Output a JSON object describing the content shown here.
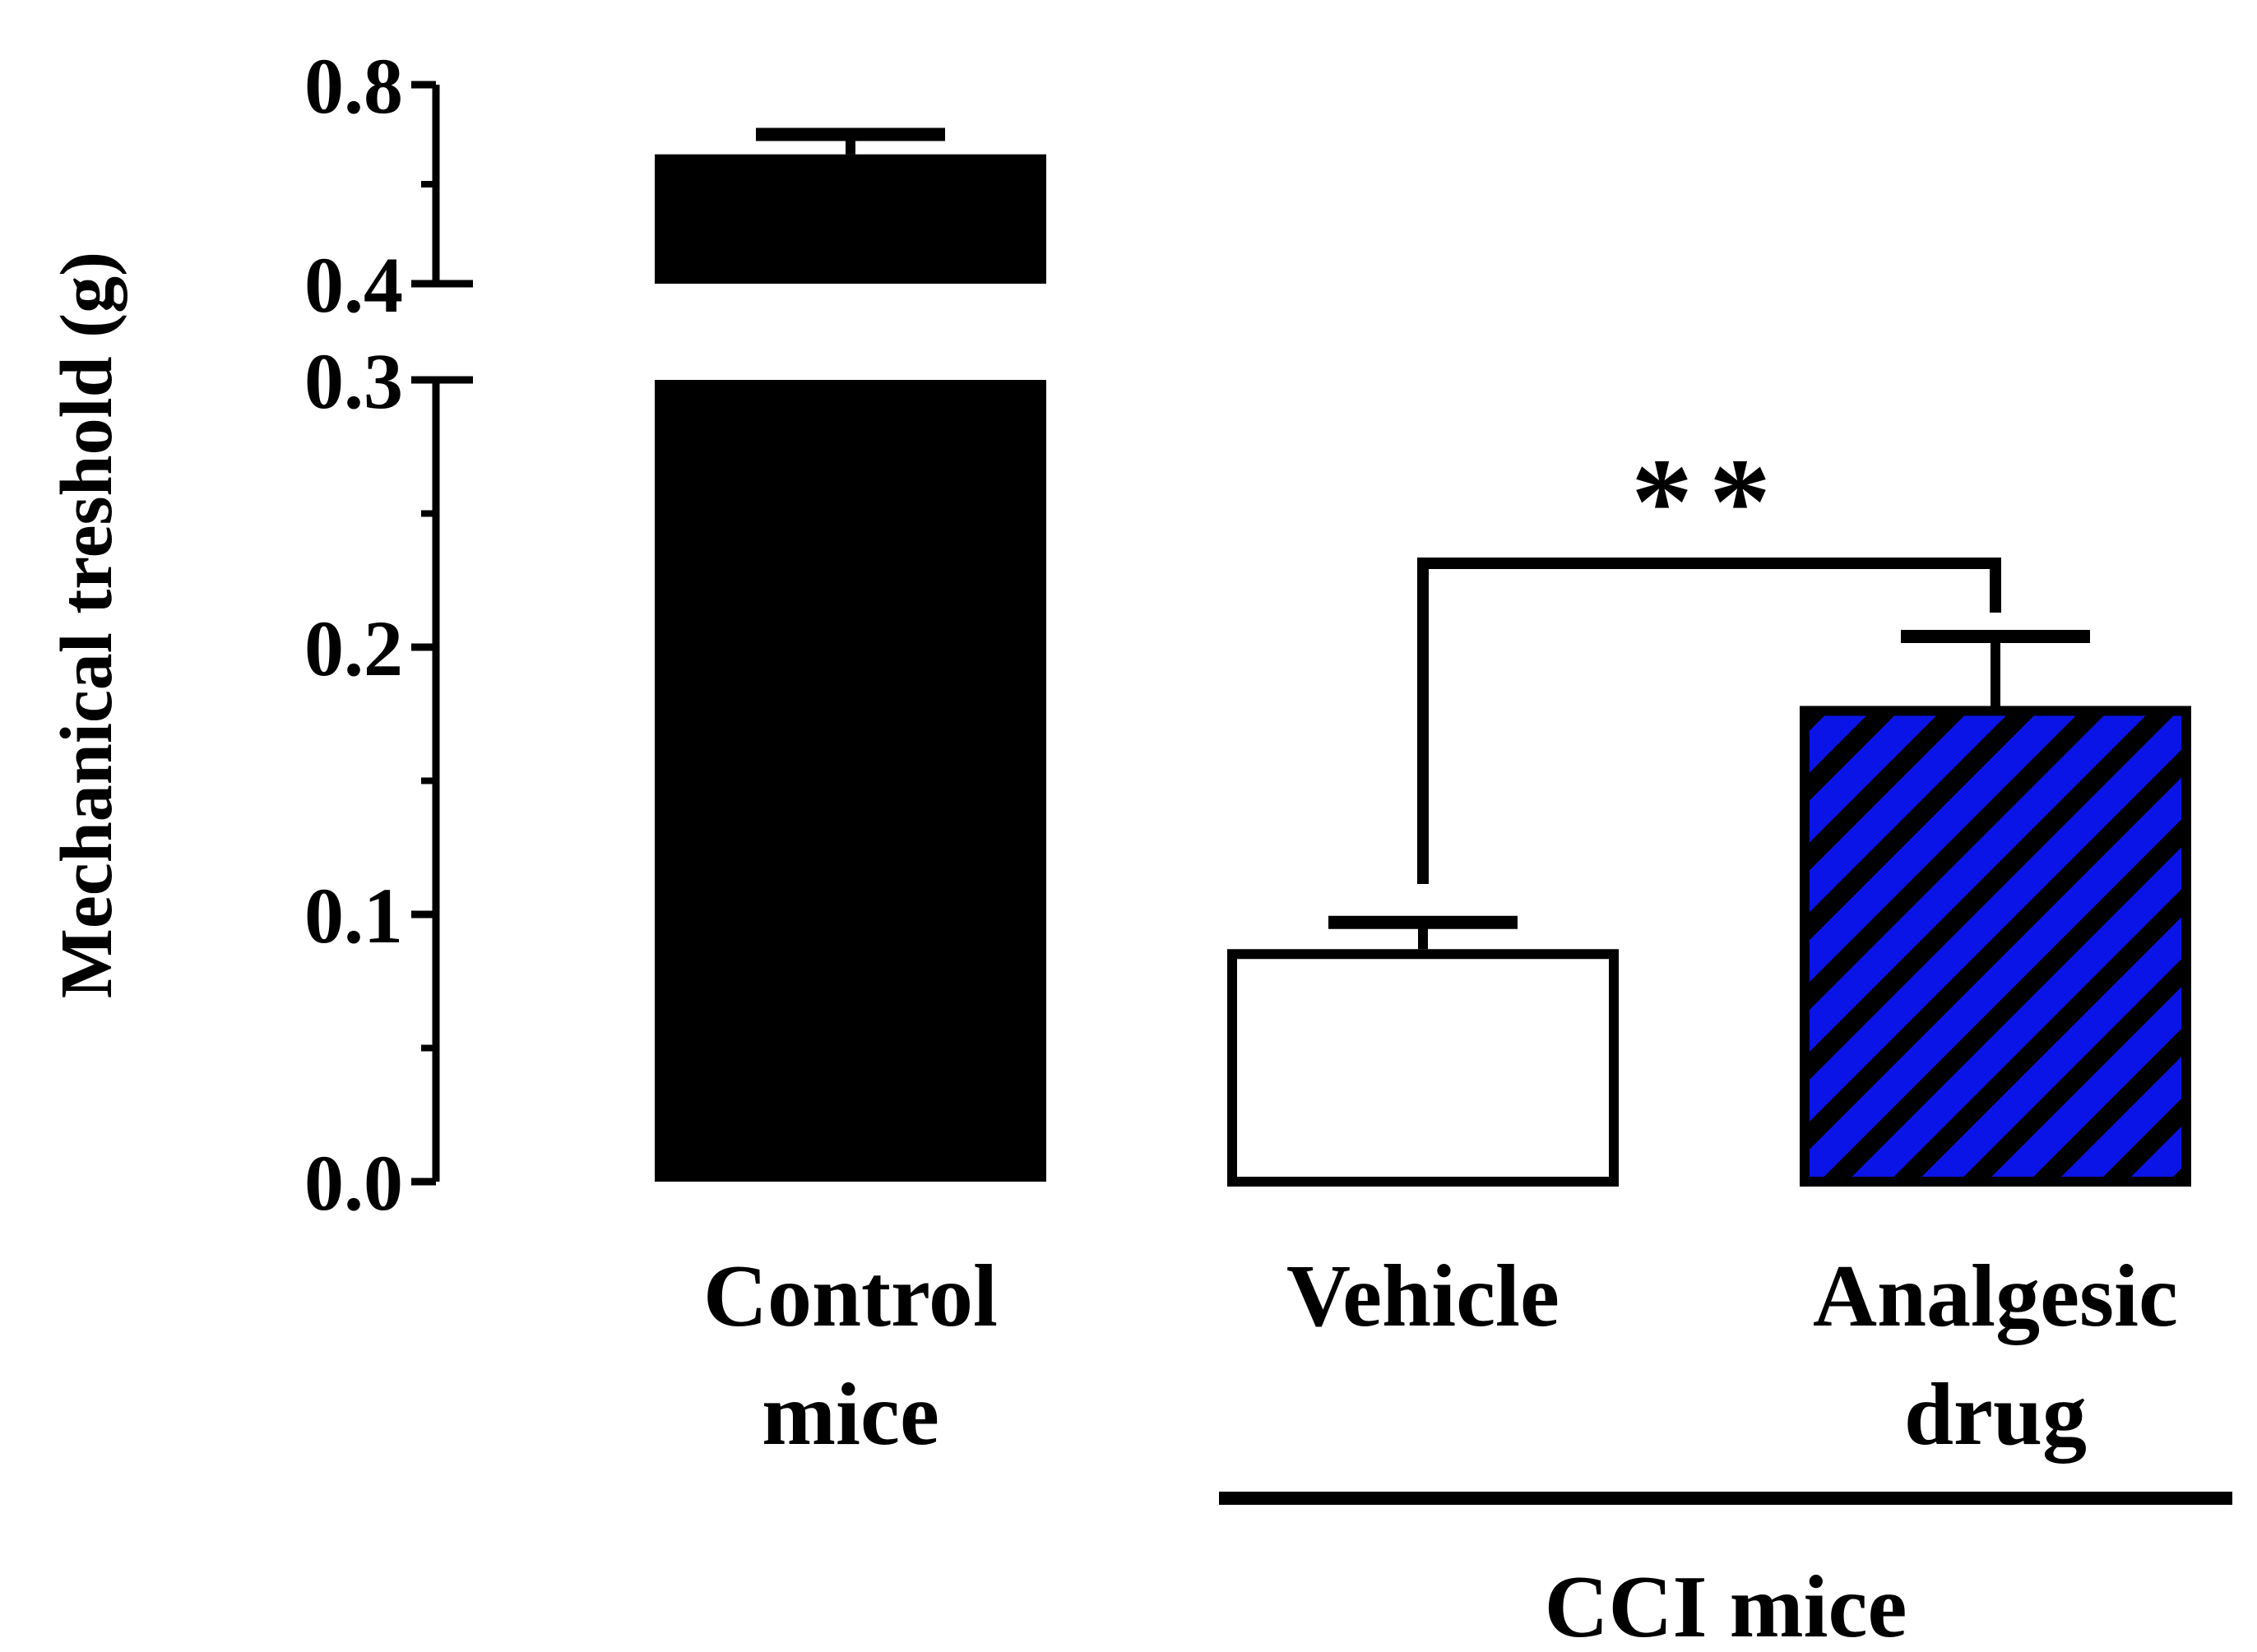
{
  "chart_data": {
    "type": "bar",
    "title": "",
    "xlabel": "",
    "ylabel": "Mechanical treshold (g)",
    "categories": [
      "Control\nmice",
      "Vehicle",
      "Analgesic\ndrug"
    ],
    "values": [
      0.66,
      0.087,
      0.178
    ],
    "errors": [
      0.04,
      0.01,
      0.026
    ],
    "y_axis": {
      "type": "broken",
      "lower_range": [
        0.0,
        0.3
      ],
      "upper_range": [
        0.4,
        0.8
      ],
      "ticks": [
        "0.0",
        "0.1",
        "0.2",
        "0.3",
        "0.4",
        "0.8"
      ]
    },
    "bar_styles": [
      {
        "fill": "#000000",
        "pattern": "solid"
      },
      {
        "fill": "#ffffff",
        "pattern": "none"
      },
      {
        "fill": "#0a14e6",
        "pattern": "diagonal-stripes",
        "stripe_color": "#000000"
      }
    ],
    "group_label": "CCI mice",
    "group_members": [
      "Vehicle",
      "Analgesic\ndrug"
    ],
    "significance": {
      "label": "**",
      "between": [
        "Vehicle",
        "Analgesic\ndrug"
      ]
    },
    "grid": false,
    "legend": "none"
  }
}
